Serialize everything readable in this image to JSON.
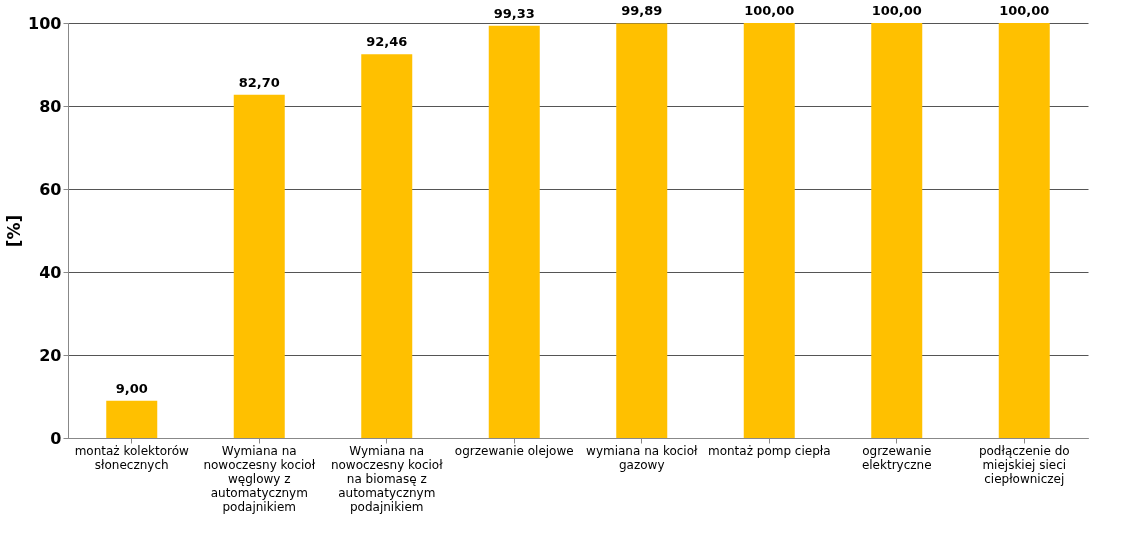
{
  "chart_data": {
    "type": "bar",
    "ylabel": "[%]",
    "categories": [
      "montaż kolektorów słonecznych",
      "Wymiana na nowoczesny kocioł węglowy z automatycznym podajnikiem",
      "Wymiana na nowoczesny kocioł na biomasę z automatycznym podajnikiem",
      "ogrzewanie olejowe",
      "wymiana na kocioł gazowy",
      "montaż pomp ciepła",
      "ogrzewanie elektryczne",
      "podłączenie do miejskiej sieci ciepłowniczej"
    ],
    "values": [
      9.0,
      82.7,
      92.46,
      99.33,
      99.89,
      100.0,
      100.0,
      100.0
    ],
    "value_labels": [
      "9,00",
      "82,70",
      "92,46",
      "99,33",
      "99,89",
      "100,00",
      "100,00",
      "100,00"
    ],
    "color": "#ffc000",
    "ylim": [
      0,
      100
    ],
    "yticks": [
      0,
      20,
      40,
      60,
      80,
      100
    ],
    "grid": "y"
  }
}
